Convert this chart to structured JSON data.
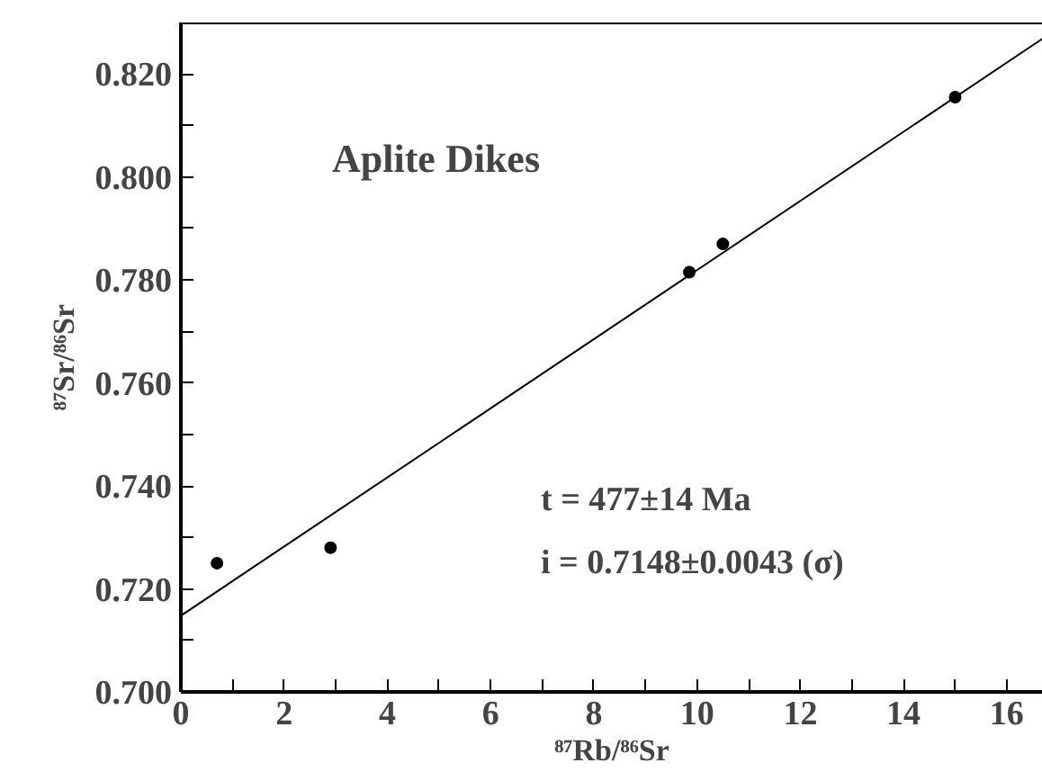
{
  "chart_data": {
    "type": "scatter",
    "title": "Aplite Dikes",
    "xlabel": "⁸⁷Rb/⁸⁶Sr",
    "ylabel": "⁸⁷Sr/⁸⁶Sr",
    "xlim": [
      0,
      16.7
    ],
    "ylim": [
      0.7,
      0.83
    ],
    "xticks": [
      0,
      {
        "value": 1,
        "label": null
      },
      2,
      {
        "value": 3,
        "label": null
      },
      4,
      {
        "value": 5,
        "label": null
      },
      6,
      {
        "value": 7,
        "label": null
      },
      8,
      {
        "value": 9,
        "label": null
      },
      10,
      {
        "value": 11,
        "label": null
      },
      12,
      {
        "value": 13,
        "label": null
      },
      14,
      {
        "value": 15,
        "label": null
      },
      16
    ],
    "yticks": [
      {
        "value": 0.7,
        "label": "0.700"
      },
      {
        "value": 0.71,
        "label": null
      },
      {
        "value": 0.72,
        "label": "0.720"
      },
      {
        "value": 0.73,
        "label": null
      },
      {
        "value": 0.74,
        "label": "0.740"
      },
      {
        "value": 0.75,
        "label": null
      },
      {
        "value": 0.76,
        "label": "0.760"
      },
      {
        "value": 0.77,
        "label": null
      },
      {
        "value": 0.78,
        "label": "0.780"
      },
      {
        "value": 0.79,
        "label": null
      },
      {
        "value": 0.8,
        "label": "0.800"
      },
      {
        "value": 0.81,
        "label": null
      },
      {
        "value": 0.82,
        "label": "0.820"
      }
    ],
    "grid": false,
    "series": [
      {
        "marker": "circle",
        "color": "#000000",
        "x": [
          0.7,
          2.9,
          9.85,
          10.5,
          15.0
        ],
        "values": [
          0.725,
          0.728,
          0.7815,
          0.787,
          0.8155
        ]
      },
      {
        "type": "line",
        "marker": "none",
        "color": "#000000",
        "x": [
          0,
          16.7
        ],
        "values": [
          0.7148,
          0.8269
        ]
      }
    ],
    "annotations": [
      "t = 477±14 Ma",
      "i = 0.7148±0.0043 (σ)"
    ]
  }
}
